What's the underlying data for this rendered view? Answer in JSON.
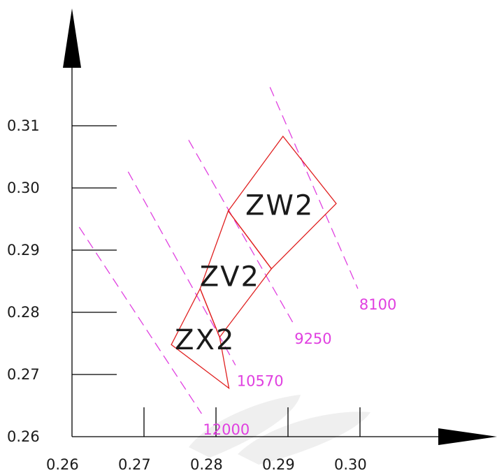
{
  "chart_data": {
    "type": "diagram",
    "x_ticks": [
      "0.26",
      "0.27",
      "0.28",
      "0.29",
      "0.30"
    ],
    "y_ticks": [
      "0.26",
      "0.27",
      "0.28",
      "0.29",
      "0.30",
      "0.31"
    ],
    "xlim": [
      0.26,
      0.31
    ],
    "ylim": [
      0.26,
      0.315
    ],
    "regions": [
      {
        "name": "ZW2",
        "corners": [
          [
            0.2817,
            0.2963
          ],
          [
            0.2893,
            0.3083
          ],
          [
            0.2967,
            0.2975
          ],
          [
            0.2877,
            0.287
          ]
        ]
      },
      {
        "name": "ZV2",
        "corners": [
          [
            0.2778,
            0.2838
          ],
          [
            0.2817,
            0.2963
          ],
          [
            0.2877,
            0.287
          ],
          [
            0.2805,
            0.276
          ]
        ]
      },
      {
        "name": "ZX2",
        "corners": [
          [
            0.2738,
            0.2748
          ],
          [
            0.2778,
            0.2838
          ],
          [
            0.2805,
            0.276
          ],
          [
            0.2818,
            0.2678
          ]
        ]
      }
    ],
    "cct_lines": [
      {
        "label": "8100",
        "from": [
          0.2875,
          0.3162
        ],
        "to": [
          0.2997,
          0.2838
        ]
      },
      {
        "label": "9250",
        "from": [
          0.2762,
          0.3077
        ],
        "to": [
          0.2907,
          0.2783
        ]
      },
      {
        "label": "10570",
        "from": [
          0.2678,
          0.3026
        ],
        "to": [
          0.2827,
          0.2715
        ]
      },
      {
        "label": "12000",
        "from": [
          0.261,
          0.2937
        ],
        "to": [
          0.278,
          0.2637
        ]
      }
    ]
  }
}
